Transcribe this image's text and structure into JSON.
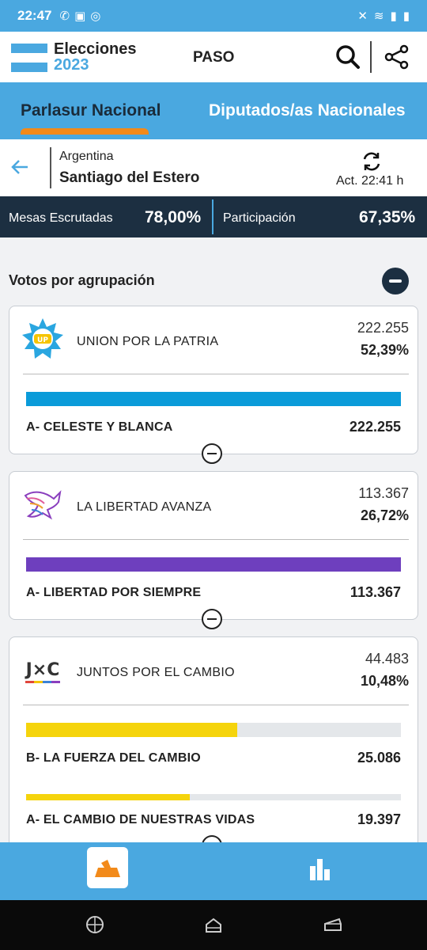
{
  "statusbar": {
    "time": "22:47"
  },
  "header": {
    "brand_line1": "Elecciones",
    "brand_line2": "2023",
    "title": "PASO"
  },
  "tabs": [
    {
      "label": "Parlasur Nacional"
    },
    {
      "label": "Diputados/as Nacionales"
    }
  ],
  "location": {
    "country": "Argentina",
    "province": "Santiago del Estero",
    "updated": "Act. 22:41 h"
  },
  "stats": {
    "mesas_label": "Mesas Escrutadas",
    "mesas_value": "78,00%",
    "participacion_label": "Participación",
    "participacion_value": "67,35%"
  },
  "section": {
    "title": "Votos por agrupación"
  },
  "parties": [
    {
      "name": "UNION POR LA PATRIA",
      "votes": "222.255",
      "percent": "52,39%",
      "color": "#0a9bd9",
      "lists": [
        {
          "name": "A- CELESTE Y BLANCA",
          "votes": "222.255",
          "share": 1.0,
          "color": "#0a9bd9"
        }
      ]
    },
    {
      "name": "LA LIBERTAD AVANZA",
      "votes": "113.367",
      "percent": "26,72%",
      "color": "#6e3fbe",
      "lists": [
        {
          "name": "A- LIBERTAD POR SIEMPRE",
          "votes": "113.367",
          "share": 1.0,
          "color": "#6e3fbe"
        }
      ]
    },
    {
      "name": "JUNTOS POR EL CAMBIO",
      "votes": "44.483",
      "percent": "10,48%",
      "color": "#f5d40c",
      "lists": [
        {
          "name": "B- LA FUERZA DEL CAMBIO",
          "votes": "25.086",
          "share": 0.564,
          "color": "#f5d40c"
        },
        {
          "name": "A- EL CAMBIO DE NUESTRAS VIDAS",
          "votes": "19.397",
          "share": 0.436,
          "color": "#f5d40c"
        }
      ]
    }
  ],
  "logos": {
    "up_text": "UP",
    "jxc_text": "J×C"
  }
}
